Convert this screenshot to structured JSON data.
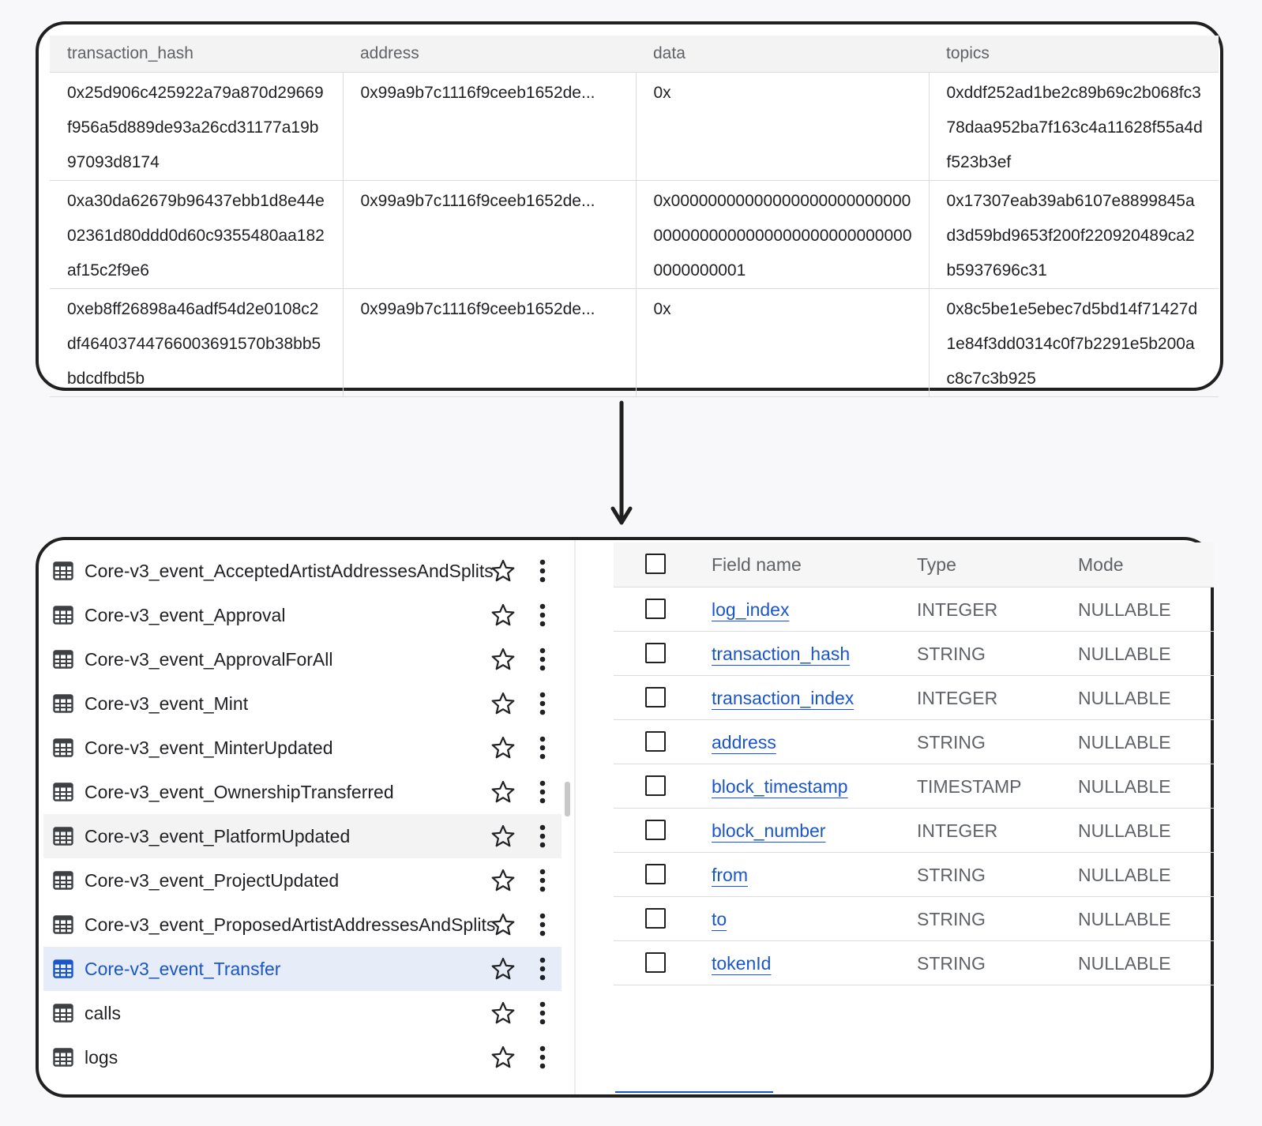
{
  "preview": {
    "columns": [
      "transaction_hash",
      "address",
      "data",
      "topics"
    ],
    "rows": [
      {
        "transaction_hash": "0x25d906c425922a79a870d29669f956a5d889de93a26cd31177a19b97093d8174",
        "address": "0x99a9b7c1116f9ceeb1652de...",
        "data": "0x",
        "topics": "0xddf252ad1be2c89b69c2b068fc378daa952ba7f163c4a11628f55a4df523b3ef"
      },
      {
        "transaction_hash": "0xa30da62679b96437ebb1d8e44e02361d80ddd0d60c9355480aa182af15c2f9e6",
        "address": "0x99a9b7c1116f9ceeb1652de...",
        "data": "0x0000000000000000000000000000000000000000000000000000000000000001",
        "topics": "0x17307eab39ab6107e8899845ad3d59bd9653f200f220920489ca2b5937696c31"
      },
      {
        "transaction_hash": "0xeb8ff26898a46adf54d2e0108c2df46403744766003691570b38bb5bdcdfbd5b",
        "address": "0x99a9b7c1116f9ceeb1652de...",
        "data": "0x",
        "topics": "0x8c5be1e5ebec7d5bd14f71427d1e84f3dd0314c0f7b2291e5b200ac8c7c3b925"
      }
    ]
  },
  "tree": {
    "items": [
      {
        "label": "Core-v3_event_AcceptedArtistAddressesAndSplits",
        "state": "normal",
        "icon": "table-icon"
      },
      {
        "label": "Core-v3_event_Approval",
        "state": "normal",
        "icon": "table-icon"
      },
      {
        "label": "Core-v3_event_ApprovalForAll",
        "state": "normal",
        "icon": "table-icon"
      },
      {
        "label": "Core-v3_event_Mint",
        "state": "normal",
        "icon": "table-icon"
      },
      {
        "label": "Core-v3_event_MinterUpdated",
        "state": "normal",
        "icon": "table-icon"
      },
      {
        "label": "Core-v3_event_OwnershipTransferred",
        "state": "normal",
        "icon": "table-icon"
      },
      {
        "label": "Core-v3_event_PlatformUpdated",
        "state": "hover",
        "icon": "table-icon"
      },
      {
        "label": "Core-v3_event_ProjectUpdated",
        "state": "normal",
        "icon": "table-icon"
      },
      {
        "label": "Core-v3_event_ProposedArtistAddressesAndSplits",
        "state": "normal",
        "icon": "table-icon"
      },
      {
        "label": "Core-v3_event_Transfer",
        "state": "selected",
        "icon": "table-icon"
      },
      {
        "label": "calls",
        "state": "normal",
        "icon": "table-icon"
      },
      {
        "label": "logs",
        "state": "normal",
        "icon": "table-icon"
      }
    ],
    "colors": {
      "selected_bg": "#e6ecf8",
      "selected_text": "#1a56c9",
      "hover_bg": "#f3f3f3"
    }
  },
  "schema": {
    "headers": {
      "field_name": "Field name",
      "type": "Type",
      "mode": "Mode"
    },
    "fields": [
      {
        "name": "log_index",
        "type": "INTEGER",
        "mode": "NULLABLE"
      },
      {
        "name": "transaction_hash",
        "type": "STRING",
        "mode": "NULLABLE"
      },
      {
        "name": "transaction_index",
        "type": "INTEGER",
        "mode": "NULLABLE"
      },
      {
        "name": "address",
        "type": "STRING",
        "mode": "NULLABLE"
      },
      {
        "name": "block_timestamp",
        "type": "TIMESTAMP",
        "mode": "NULLABLE"
      },
      {
        "name": "block_number",
        "type": "INTEGER",
        "mode": "NULLABLE"
      },
      {
        "name": "from",
        "type": "STRING",
        "mode": "NULLABLE"
      },
      {
        "name": "to",
        "type": "STRING",
        "mode": "NULLABLE"
      },
      {
        "name": "tokenId",
        "type": "STRING",
        "mode": "NULLABLE"
      }
    ],
    "colors": {
      "link": "#1a56c9",
      "muted": "#5f6368"
    }
  }
}
